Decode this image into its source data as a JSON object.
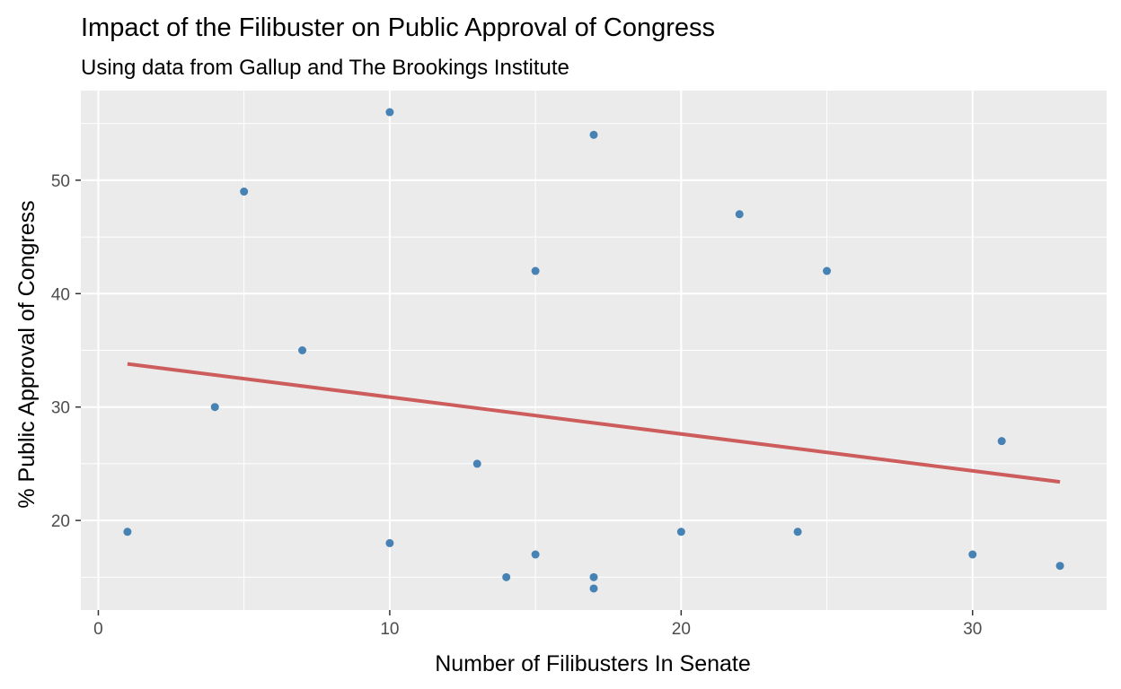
{
  "chart_data": {
    "type": "scatter",
    "title": "Impact of the Filibuster on Public Approval of Congress",
    "subtitle": "Using data from Gallup and The Brookings Institute",
    "xlabel": "Number of Filibusters In Senate",
    "ylabel": "% Public Approval of Congress",
    "xlim": [
      -0.6,
      34.6
    ],
    "ylim": [
      12.1,
      57.9
    ],
    "x_ticks": [
      0,
      10,
      20,
      30
    ],
    "y_ticks": [
      20,
      30,
      40,
      50
    ],
    "grid": true,
    "colors": {
      "points": "#4682b4",
      "trend": "#cd5c5c",
      "panel": "#ebebeb",
      "grid": "#ffffff"
    },
    "points": [
      {
        "x": 1,
        "y": 19
      },
      {
        "x": 4,
        "y": 30
      },
      {
        "x": 5,
        "y": 49
      },
      {
        "x": 7,
        "y": 35
      },
      {
        "x": 10,
        "y": 56
      },
      {
        "x": 10,
        "y": 18
      },
      {
        "x": 13,
        "y": 25
      },
      {
        "x": 14,
        "y": 15
      },
      {
        "x": 15,
        "y": 42
      },
      {
        "x": 15,
        "y": 17
      },
      {
        "x": 17,
        "y": 54
      },
      {
        "x": 17,
        "y": 15
      },
      {
        "x": 17,
        "y": 14
      },
      {
        "x": 20,
        "y": 19
      },
      {
        "x": 22,
        "y": 47
      },
      {
        "x": 24,
        "y": 19
      },
      {
        "x": 25,
        "y": 42
      },
      {
        "x": 30,
        "y": 17
      },
      {
        "x": 31,
        "y": 27
      },
      {
        "x": 33,
        "y": 16
      }
    ],
    "trend_line": {
      "x": [
        1,
        33
      ],
      "y": [
        33.8,
        23.4
      ]
    }
  }
}
